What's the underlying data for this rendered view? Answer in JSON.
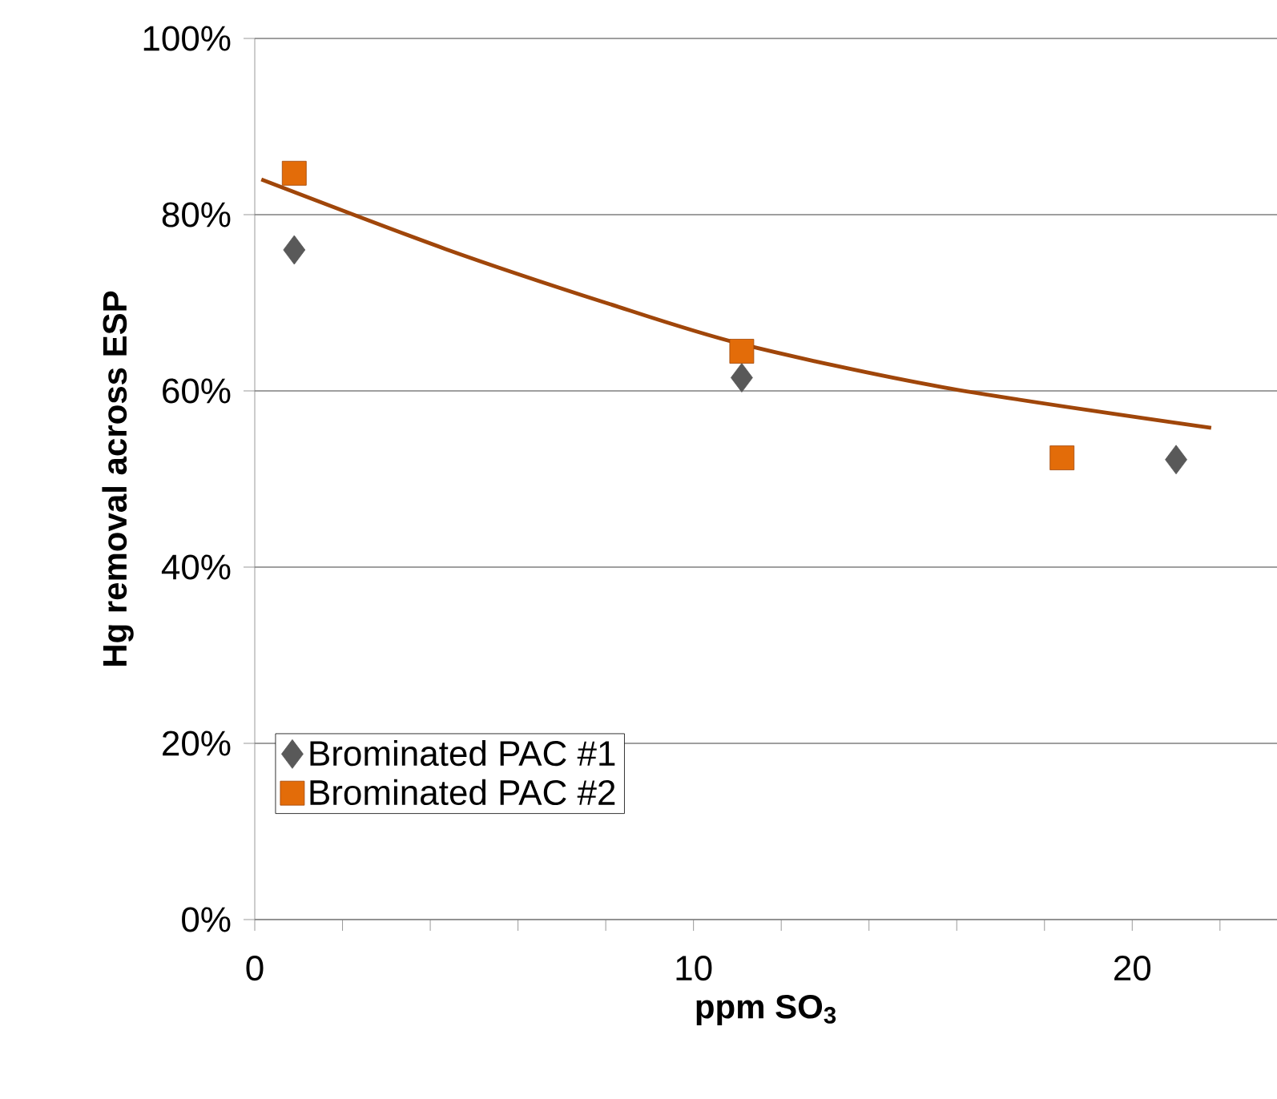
{
  "chart_data": {
    "type": "scatter",
    "xlabel": "ppm SO$_{3}$",
    "ylabel": "Hg removal across ESP",
    "xlim": [
      0,
      23.3
    ],
    "xticks": [
      0,
      {
        "value": 2,
        "label": null
      },
      {
        "value": 4,
        "label": null
      },
      {
        "value": 6,
        "label": null
      },
      {
        "value": 8,
        "label": null
      },
      10,
      {
        "value": 12,
        "label": null
      },
      {
        "value": 14,
        "label": null
      },
      {
        "value": 16,
        "label": null
      },
      {
        "value": 18,
        "label": null
      },
      20,
      {
        "value": 22,
        "label": null
      }
    ],
    "ylim": [
      0,
      100
    ],
    "yticks": [
      {
        "value": 0,
        "label": "0%"
      },
      {
        "value": 20,
        "label": "20%"
      },
      {
        "value": 40,
        "label": "40%"
      },
      {
        "value": 60,
        "label": "60%"
      },
      {
        "value": 80,
        "label": "80%"
      },
      {
        "value": 100,
        "label": "100%"
      }
    ],
    "grid": "y",
    "legend": "bottom left",
    "series": [
      {
        "name": "Brominated PAC #1",
        "color": "#595959",
        "marker": "diamond",
        "x": [
          0.9,
          11.1,
          21.0
        ],
        "values": [
          76,
          61.5,
          52.2
        ]
      },
      {
        "name": "Brominated PAC #2",
        "color": "#e36c09",
        "marker": "square",
        "x": [
          0.9,
          11.1,
          18.4
        ],
        "values": [
          84.7,
          64.5,
          52.4
        ]
      },
      {
        "type": "line",
        "color": "#a0460a",
        "x": [
          0.15,
          4.35,
          8.0,
          11.1,
          15.7,
          21.8
        ],
        "values": [
          84.0,
          76.1,
          70.0,
          65.3,
          60.4,
          55.8
        ]
      }
    ]
  }
}
